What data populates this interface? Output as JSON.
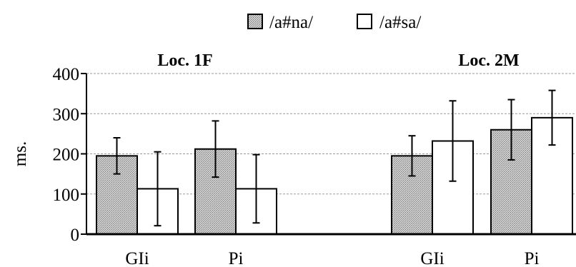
{
  "chart_data": {
    "type": "bar",
    "title": "",
    "ylabel": "ms.",
    "xlabel": "",
    "ylim": [
      0,
      400
    ],
    "yticks": [
      0,
      100,
      200,
      300,
      400
    ],
    "grid": true,
    "legend_position": "top-center",
    "series": [
      {
        "name": "/a#na/",
        "fill": "#b8b8b8",
        "pattern": "stipple"
      },
      {
        "name": "/a#sa/",
        "fill": "#ffffff",
        "pattern": "none"
      }
    ],
    "panels": [
      {
        "title": "Loc. 1F",
        "categories": [
          "GIi",
          "Pi"
        ],
        "values": {
          "/a#na/": [
            195,
            212
          ],
          "/a#sa/": [
            113,
            113
          ]
        },
        "error": {
          "/a#na/": [
            45,
            70
          ],
          "/a#sa/": [
            92,
            85
          ]
        }
      },
      {
        "title": "Loc. 2M",
        "categories": [
          "GIi",
          "Pi"
        ],
        "values": {
          "/a#na/": [
            195,
            260
          ],
          "/a#sa/": [
            232,
            290
          ]
        },
        "error": {
          "/a#na/": [
            50,
            75
          ],
          "/a#sa/": [
            100,
            68
          ]
        }
      }
    ]
  }
}
